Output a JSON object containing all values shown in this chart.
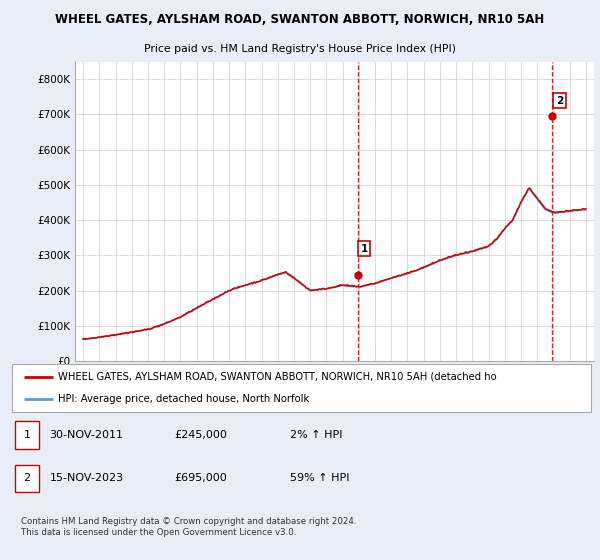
{
  "title1": "WHEEL GATES, AYLSHAM ROAD, SWANTON ABBOTT, NORWICH, NR10 5AH",
  "title2": "Price paid vs. HM Land Registry's House Price Index (HPI)",
  "ylim": [
    0,
    850000
  ],
  "yticks": [
    0,
    100000,
    200000,
    300000,
    400000,
    500000,
    600000,
    700000,
    800000
  ],
  "ytick_labels": [
    "£0",
    "£100K",
    "£200K",
    "£300K",
    "£400K",
    "£500K",
    "£600K",
    "£700K",
    "£800K"
  ],
  "bg_color": "#e8eef8",
  "plot_bg": "#ffffff",
  "line_color_hpi": "#6699cc",
  "line_color_price": "#cc0000",
  "marker_color": "#cc0000",
  "vline_color": "#cc0000",
  "sale1_x": 2011.92,
  "sale1_y": 245000,
  "sale1_label": "1",
  "sale2_x": 2023.88,
  "sale2_y": 695000,
  "sale2_label": "2",
  "legend_line1": "WHEEL GATES, AYLSHAM ROAD, SWANTON ABBOTT, NORWICH, NR10 5AH (detached ho",
  "legend_line2": "HPI: Average price, detached house, North Norfolk",
  "copyright": "Contains HM Land Registry data © Crown copyright and database right 2024.\nThis data is licensed under the Open Government Licence v3.0.",
  "xmin": 1994.5,
  "xmax": 2026.5
}
